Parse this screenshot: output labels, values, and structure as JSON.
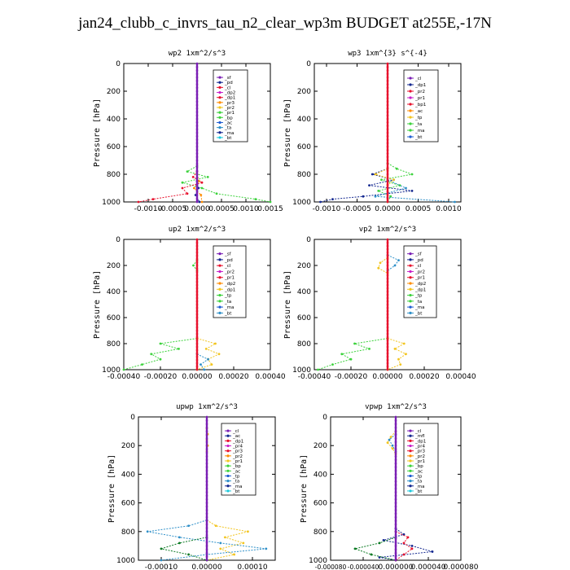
{
  "figure": {
    "title": "jan24_clubb_c_invrs_tau_n2_clear_wp3m  BUDGET at255E,-17N"
  },
  "colors": {
    "red": "#e8112d",
    "orange": "#ff8c00",
    "yellow": "#f2c51f",
    "green": "#3cd23c",
    "blue": "#1e5cd2",
    "cyan": "#19c8dc",
    "purple": "#7a1eb4",
    "darkgreen": "#0c7a24",
    "navy": "#142890",
    "steelblue": "#2d8fc8",
    "magenta": "#c81ec8"
  },
  "chart_data": [
    {
      "type": "line",
      "title": "wp2   1xm^2/s^3",
      "ylabel": "Pressure [hPa]",
      "xlim": [
        -0.0015,
        0.0015
      ],
      "ylim": [
        1000,
        0
      ],
      "xticks": [
        "-0.0010",
        "-0.0005",
        "0.0000",
        "0.0005",
        "0.0010",
        "0.0015"
      ],
      "xtick_values": [
        -0.001,
        -0.0005,
        0,
        0.0005,
        0.001,
        0.0015
      ],
      "yticks": [
        "0",
        "200",
        "400",
        "600",
        "800",
        "1000"
      ],
      "legend": [
        "_sf",
        "_pd",
        "_cl",
        "_dp2",
        "_dp1",
        "_pr3",
        "_pr2",
        "_pr1",
        "_bp",
        "_ac",
        "_ta",
        "_ma",
        "_bt"
      ],
      "series": [
        {
          "name": "_bp",
          "color": "green",
          "y": [
            740,
            780,
            820,
            860,
            900,
            940,
            980,
            1000
          ],
          "x": [
            0,
            -0.0002,
            0.00022,
            -0.0003,
            0.0001,
            0.0004,
            0.0012,
            0.0015
          ]
        },
        {
          "name": "_dp1",
          "color": "red",
          "y": [
            780,
            820,
            860,
            900,
            940,
            980,
            1000
          ],
          "x": [
            0,
            -8e-05,
            0.0001,
            -0.0003,
            -0.0002,
            -0.0009,
            -0.0012
          ]
        },
        {
          "name": "_pr1",
          "color": "orange",
          "y": [
            800,
            850,
            900,
            950,
            1000
          ],
          "x": [
            0,
            4e-05,
            -6e-05,
            8e-05,
            0.0001
          ]
        },
        {
          "name": "_ta",
          "color": "navy",
          "y": [
            850,
            900,
            950,
            1000
          ],
          "x": [
            0,
            3e-05,
            -3e-05,
            5e-05
          ]
        },
        {
          "name": "_bt",
          "color": "purple",
          "y": [
            0,
            1000
          ],
          "x": [
            0,
            0
          ]
        }
      ]
    },
    {
      "type": "line",
      "title": "wp3   1xm^{3} s^{-4}",
      "ylabel": "Pressure [hPa]",
      "xlim": [
        -0.0012,
        0.0012
      ],
      "ylim": [
        1000,
        0
      ],
      "xticks": [
        "-0.0010",
        "-0.0005",
        "0.0000",
        "0.0005",
        "0.0010"
      ],
      "xtick_values": [
        -0.001,
        -0.0005,
        0,
        0.0005,
        0.001
      ],
      "yticks": [
        "0",
        "200",
        "400",
        "600",
        "800",
        "1000"
      ],
      "legend": [
        "_cl",
        "_dp1",
        "_pr2",
        "_pr1",
        "_bp1",
        "_ac",
        "_tp",
        "_ta",
        "_ma",
        "_bt"
      ],
      "series": [
        {
          "name": "_bp1",
          "color": "green",
          "y": [
            720,
            760,
            800,
            840,
            880,
            920,
            960,
            1000
          ],
          "x": [
            0,
            0.00015,
            0.0004,
            -0.0001,
            0.0002,
            -0.00015,
            5e-05,
            0
          ]
        },
        {
          "name": "_ta",
          "color": "navy",
          "y": [
            760,
            800,
            840,
            880,
            920,
            960,
            980,
            1000
          ],
          "x": [
            0,
            -0.00025,
            0.0001,
            -0.0003,
            0.0004,
            -0.0004,
            -0.0009,
            -0.0011
          ]
        },
        {
          "name": "_tp",
          "color": "steelblue",
          "y": [
            840,
            900,
            960,
            1000
          ],
          "x": [
            0,
            0.0003,
            -0.0002,
            0.0011
          ]
        },
        {
          "name": "_pr2",
          "color": "yellow",
          "y": [
            760,
            800,
            840,
            880
          ],
          "x": [
            0,
            -0.0002,
            0.0001,
            0
          ]
        },
        {
          "name": "_cl",
          "color": "red",
          "y": [
            0,
            1000
          ],
          "x": [
            0,
            0
          ]
        }
      ]
    },
    {
      "type": "line",
      "title": "up2   1xm^2/s^3",
      "ylabel": "Pressure [hPa]",
      "xlim": [
        -0.0004,
        0.0004
      ],
      "ylim": [
        1000,
        0
      ],
      "xticks": [
        "-0.00040",
        "-0.00020",
        "0.00000",
        "0.00020",
        "0.00040"
      ],
      "xtick_values": [
        -0.0004,
        -0.0002,
        0,
        0.0002,
        0.0004
      ],
      "yticks": [
        "0",
        "200",
        "400",
        "600",
        "800",
        "1000"
      ],
      "legend": [
        "_sf",
        "_pd",
        "_cl",
        "_pr2",
        "_pr1",
        "_dp2",
        "_dp1",
        "_tp",
        "_ta",
        "_ma",
        "_bt"
      ],
      "series": [
        {
          "name": "_dp1",
          "color": "green",
          "y": [
            760,
            800,
            840,
            880,
            920,
            960,
            1000
          ],
          "x": [
            0,
            -0.0002,
            -0.0001,
            -0.00025,
            -0.0002,
            -0.0003,
            -0.0004
          ]
        },
        {
          "name": "_pr1",
          "color": "yellow",
          "y": [
            760,
            800,
            840,
            880,
            920,
            960,
            1000
          ],
          "x": [
            0,
            0.0001,
            5e-05,
            0.00012,
            6e-05,
            8e-05,
            0
          ]
        },
        {
          "name": "_tp",
          "color": "steelblue",
          "y": [
            880,
            920,
            960,
            1000
          ],
          "x": [
            0,
            6e-05,
            2e-05,
            4e-05
          ]
        },
        {
          "name": "_dp2",
          "color": "green",
          "y": [
            160,
            200,
            240
          ],
          "x": [
            0,
            -2e-05,
            0
          ]
        },
        {
          "name": "_cl",
          "color": "red",
          "y": [
            0,
            1000
          ],
          "x": [
            0,
            0
          ]
        }
      ]
    },
    {
      "type": "line",
      "title": "vp2   1xm^2/s^3",
      "ylabel": "Pressure [hPa]",
      "xlim": [
        -0.0004,
        0.0004
      ],
      "ylim": [
        1000,
        0
      ],
      "xticks": [
        "-0.00040",
        "-0.00020",
        "0.00000",
        "0.00020",
        "0.00040"
      ],
      "xtick_values": [
        -0.0004,
        -0.0002,
        0,
        0.0002,
        0.0004
      ],
      "yticks": [
        "0",
        "200",
        "400",
        "600",
        "800",
        "1000"
      ],
      "legend": [
        "_sf",
        "_pd",
        "_cl",
        "_pr2",
        "_pr1",
        "_dp2",
        "_dp1",
        "_tp",
        "_ta",
        "_ma",
        "_bt"
      ],
      "series": [
        {
          "name": "_dp1",
          "color": "green",
          "y": [
            760,
            800,
            840,
            880,
            920,
            960,
            1000
          ],
          "x": [
            0,
            -0.00018,
            -0.0001,
            -0.00025,
            -0.0002,
            -0.0003,
            -0.00038
          ]
        },
        {
          "name": "_pr1",
          "color": "yellow",
          "y": [
            760,
            800,
            840,
            880,
            920,
            960,
            1000
          ],
          "x": [
            0,
            9e-05,
            4e-05,
            0.0001,
            6e-05,
            7e-05,
            0
          ]
        },
        {
          "name": "_pr2",
          "color": "yellow",
          "y": [
            140,
            180,
            220,
            260
          ],
          "x": [
            0,
            -4e-05,
            -5e-05,
            0
          ]
        },
        {
          "name": "_tp",
          "color": "steelblue",
          "y": [
            120,
            160,
            200,
            240
          ],
          "x": [
            0,
            6e-05,
            4e-05,
            0
          ]
        },
        {
          "name": "_cl",
          "color": "red",
          "y": [
            0,
            1000
          ],
          "x": [
            0,
            0
          ]
        }
      ]
    },
    {
      "type": "line",
      "title": "upwp   1xm^2/s^3",
      "ylabel": "Pressure [hPa]",
      "xlim": [
        -0.00015,
        0.00015
      ],
      "ylim": [
        1000,
        0
      ],
      "xticks": [
        "-0.00010",
        "0.00000",
        "0.00010"
      ],
      "xtick_values": [
        -0.0001,
        0,
        0.0001
      ],
      "yticks": [
        "0",
        "200",
        "400",
        "600",
        "800",
        "1000"
      ],
      "legend": [
        "_cl",
        "_ac",
        "_dp1",
        "_pr4",
        "_pr3",
        "_pr2",
        "_pr1",
        "_bp",
        "_ac",
        "_tp",
        "_ta",
        "_ma",
        "_bt"
      ],
      "series": [
        {
          "name": "_pr1",
          "color": "yellow",
          "y": [
            720,
            760,
            800,
            840,
            880,
            920,
            960,
            1000
          ],
          "x": [
            0,
            2e-05,
            9e-05,
            4e-05,
            8e-05,
            3e-05,
            6e-05,
            0
          ]
        },
        {
          "name": "_tp",
          "color": "steelblue",
          "y": [
            720,
            760,
            800,
            840,
            880,
            920,
            960,
            1000
          ],
          "x": [
            0,
            -4e-05,
            -0.00013,
            -6e-05,
            3e-05,
            0.00013,
            0,
            -0.0001
          ]
        },
        {
          "name": "_bp",
          "color": "darkgreen",
          "y": [
            840,
            880,
            920,
            960,
            1000
          ],
          "x": [
            0,
            -6e-05,
            -0.0001,
            -4e-05,
            0
          ]
        },
        {
          "name": "_pr2",
          "color": "yellow",
          "y": [
            80,
            120,
            160,
            200,
            240
          ],
          "x": [
            0,
            2e-06,
            0,
            2e-06,
            0
          ]
        },
        {
          "name": "_cl",
          "color": "purple",
          "y": [
            0,
            1000
          ],
          "x": [
            0,
            0
          ]
        }
      ]
    },
    {
      "type": "line",
      "title": "vpwp   1xm^2/s^3",
      "ylabel": "Pressure [hPa]",
      "xlim": [
        -8e-05,
        8e-05
      ],
      "ylim": [
        1000,
        0
      ],
      "xticks": [
        "-0.000080",
        "-0.000040",
        "0.000000",
        "0.000040",
        "0.000080"
      ],
      "xtick_values": [
        -8e-05,
        -4e-05,
        0,
        4e-05,
        8e-05
      ],
      "yticks": [
        "0",
        "200",
        "400",
        "600",
        "800",
        "1000"
      ],
      "legend": [
        "_cl",
        "_mfl",
        "_dp1",
        "_pr4",
        "_pr3",
        "_pr2",
        "_pr1",
        "_bp",
        "_ac",
        "_tp",
        "_ta",
        "_ma",
        "_bt"
      ],
      "series": [
        {
          "name": "_pr1",
          "color": "yellow",
          "y": [
            100,
            140,
            180,
            220,
            260
          ],
          "x": [
            0,
            -6e-06,
            -1e-05,
            -4e-06,
            0
          ]
        },
        {
          "name": "_tp",
          "color": "steelblue",
          "y": [
            120,
            160,
            200,
            240
          ],
          "x": [
            0,
            -8e-06,
            -4e-06,
            0
          ]
        },
        {
          "name": "_ta",
          "color": "navy",
          "y": [
            780,
            820,
            860,
            900,
            940,
            980,
            1000
          ],
          "x": [
            0,
            1e-05,
            -1.5e-05,
            2e-05,
            4.5e-05,
            -2e-05,
            0
          ]
        },
        {
          "name": "_bp",
          "color": "darkgreen",
          "y": [
            840,
            880,
            920,
            960,
            1000
          ],
          "x": [
            0,
            -2e-05,
            -5e-05,
            -3e-05,
            0
          ]
        },
        {
          "name": "_dp1",
          "color": "red",
          "y": [
            800,
            840,
            880,
            920,
            960,
            1000
          ],
          "x": [
            0,
            1.5e-05,
            1e-05,
            2e-05,
            1e-05,
            0
          ]
        },
        {
          "name": "_cl",
          "color": "purple",
          "y": [
            0,
            1000
          ],
          "x": [
            0,
            0
          ]
        }
      ]
    }
  ]
}
